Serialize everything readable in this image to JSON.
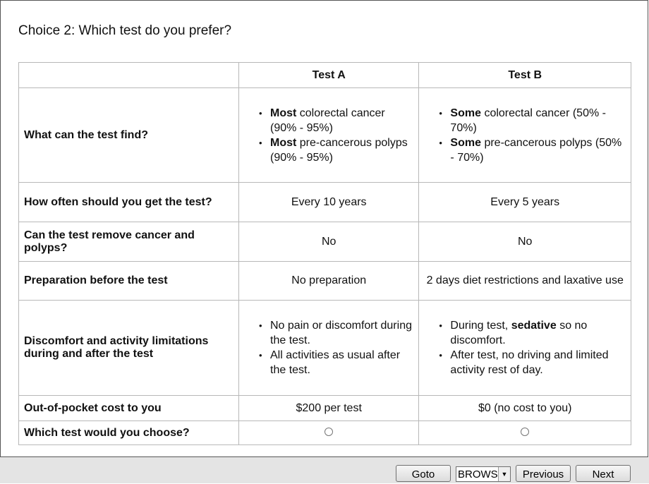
{
  "title": "Choice 2: Which test do you prefer?",
  "table": {
    "headers": [
      "Test A",
      "Test B"
    ],
    "rows": [
      {
        "label": "What can the test find?",
        "cells": [
          {
            "bullets": [
              [
                {
                  "text": "Most",
                  "bold": true
                },
                {
                  "text": "colorectal cancer (90% - 95%)"
                }
              ],
              [
                {
                  "text": "Most",
                  "bold": true
                },
                {
                  "text": "pre-cancerous polyps (90% - 95%)"
                }
              ]
            ]
          },
          {
            "bullets": [
              [
                {
                  "text": "Some",
                  "bold": true
                },
                {
                  "text": "colorectal cancer (50% - 70%)"
                }
              ],
              [
                {
                  "text": "Some",
                  "bold": true
                },
                {
                  "text": "pre-cancerous polyps (50% - 70%)"
                }
              ]
            ]
          }
        ]
      },
      {
        "label": "How often should you get the test?",
        "cells": [
          {
            "text": "Every 10 years"
          },
          {
            "text": "Every 5 years"
          }
        ]
      },
      {
        "label": "Can the test remove cancer and polyps?",
        "cells": [
          {
            "text": "No"
          },
          {
            "text": "No"
          }
        ]
      },
      {
        "label": "Preparation before the test",
        "cells": [
          {
            "text": "No preparation"
          },
          {
            "text": "2 days diet restrictions and laxative use"
          }
        ]
      },
      {
        "label": "Discomfort and activity limitations during and after the test",
        "cells": [
          {
            "bullets": [
              [
                {
                  "text": "No pain or discomfort during the test."
                }
              ],
              [
                {
                  "text": "All activities as usual after the test."
                }
              ]
            ]
          },
          {
            "bullets": [
              [
                {
                  "text": "During test,"
                },
                {
                  "text": "sedative",
                  "bold": true
                },
                {
                  "text": "so no discomfort."
                }
              ],
              [
                {
                  "text": "After test, no driving and limited activity rest of day."
                }
              ]
            ]
          }
        ]
      },
      {
        "label": "Out-of-pocket cost to you",
        "cells": [
          {
            "text": "$200 per test"
          },
          {
            "text": "$0 (no cost to you)"
          }
        ]
      }
    ],
    "choice_label": "Which test would you choose?"
  },
  "buttons": {
    "goto": "Goto",
    "select": "BROWS",
    "previous": "Previous",
    "next": "Next"
  }
}
